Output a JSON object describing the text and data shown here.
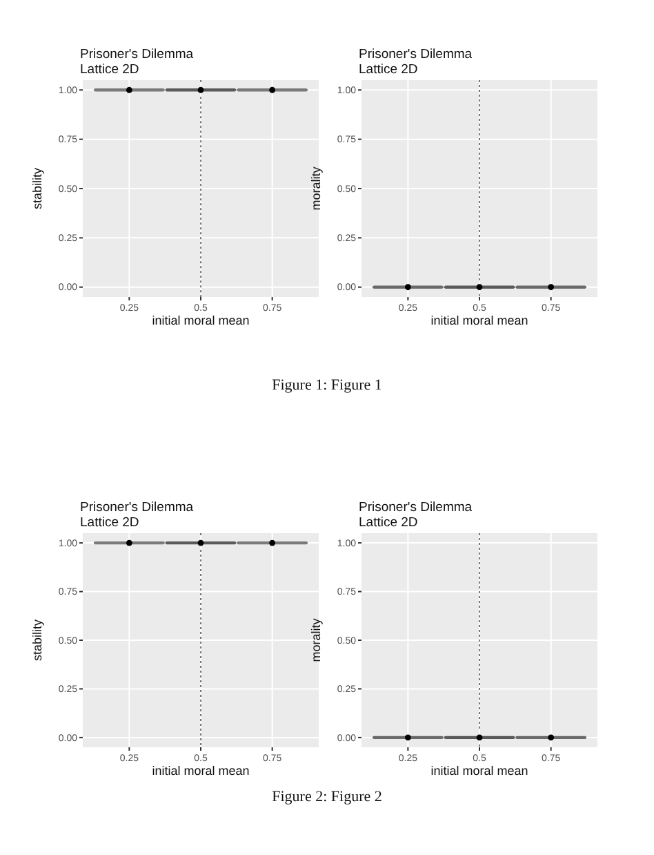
{
  "chart_data": [
    {
      "type": "box",
      "title": "Prisoner's Dilemma",
      "subtitle": "Lattice 2D",
      "xlabel": "initial moral mean",
      "ylabel": "stability",
      "x": [
        0.25,
        0.5,
        0.75
      ],
      "colors": [
        "#7a7a7a",
        "#5a5a5a",
        "#7a7a7a"
      ],
      "boxes": [
        {
          "low": 1,
          "q1": 1,
          "median": 1,
          "q3": 1,
          "high": 1,
          "mean": 1
        },
        {
          "low": 1,
          "q1": 1,
          "median": 1,
          "q3": 1,
          "high": 1,
          "mean": 1
        },
        {
          "low": 1,
          "q1": 1,
          "median": 1,
          "q3": 1,
          "high": 1,
          "mean": 1
        }
      ],
      "xlim": [
        0.0875,
        0.9125
      ],
      "xticks": [
        0.25,
        0.5,
        0.75
      ],
      "ylim": [
        -0.05,
        1.05
      ],
      "yticks": [
        {
          "value": 0,
          "label": "0.00"
        },
        {
          "value": 0.25,
          "label": "0.25"
        },
        {
          "value": 0.5,
          "label": "0.50"
        },
        {
          "value": 0.75,
          "label": "0.75"
        },
        {
          "value": 1,
          "label": "1.00"
        }
      ],
      "grid": true,
      "ref_lines": [
        {
          "axis": "x",
          "value": 0.5,
          "color": "#555555",
          "line_style": "dotted"
        }
      ]
    },
    {
      "type": "box",
      "title": "Prisoner's Dilemma",
      "subtitle": "Lattice 2D",
      "xlabel": "initial moral mean",
      "ylabel": "morality",
      "x": [
        0.25,
        0.5,
        0.75
      ],
      "colors": [
        "#6a6a6a",
        "#5a5a5a",
        "#6a6a6a"
      ],
      "boxes": [
        {
          "low": 0,
          "q1": 0,
          "median": 0,
          "q3": 0,
          "high": 0,
          "mean": 0
        },
        {
          "low": 0,
          "q1": 0,
          "median": 0,
          "q3": 0,
          "high": 0,
          "mean": 0
        },
        {
          "low": 0,
          "q1": 0,
          "median": 0,
          "q3": 0,
          "high": 0,
          "mean": 0
        }
      ],
      "xlim": [
        0.0875,
        0.9125
      ],
      "xticks": [
        0.25,
        0.5,
        0.75
      ],
      "ylim": [
        -0.05,
        1.05
      ],
      "yticks": [
        {
          "value": 0,
          "label": "0.00"
        },
        {
          "value": 0.25,
          "label": "0.25"
        },
        {
          "value": 0.5,
          "label": "0.50"
        },
        {
          "value": 0.75,
          "label": "0.75"
        },
        {
          "value": 1,
          "label": "1.00"
        }
      ],
      "grid": true,
      "ref_lines": [
        {
          "axis": "x",
          "value": 0.5,
          "color": "#555555",
          "line_style": "dotted"
        }
      ],
      "annotations": [
        "Figure 1: Figure 1"
      ]
    },
    {
      "type": "box",
      "title": "Prisoner's Dilemma",
      "subtitle": "Lattice 2D",
      "xlabel": "initial moral mean",
      "ylabel": "stability",
      "x": [
        0.25,
        0.5,
        0.75
      ],
      "colors": [
        "#7a7a7a",
        "#5a5a5a",
        "#7a7a7a"
      ],
      "boxes": [
        {
          "low": 1,
          "q1": 1,
          "median": 1,
          "q3": 1,
          "high": 1,
          "mean": 1
        },
        {
          "low": 1,
          "q1": 1,
          "median": 1,
          "q3": 1,
          "high": 1,
          "mean": 1
        },
        {
          "low": 1,
          "q1": 1,
          "median": 1,
          "q3": 1,
          "high": 1,
          "mean": 1
        }
      ],
      "xlim": [
        0.0875,
        0.9125
      ],
      "xticks": [
        0.25,
        0.5,
        0.75
      ],
      "ylim": [
        -0.05,
        1.05
      ],
      "yticks": [
        {
          "value": 0,
          "label": "0.00"
        },
        {
          "value": 0.25,
          "label": "0.25"
        },
        {
          "value": 0.5,
          "label": "0.50"
        },
        {
          "value": 0.75,
          "label": "0.75"
        },
        {
          "value": 1,
          "label": "1.00"
        }
      ],
      "grid": true,
      "ref_lines": [
        {
          "axis": "x",
          "value": 0.5,
          "color": "#555555",
          "line_style": "dotted"
        }
      ]
    },
    {
      "type": "box",
      "title": "Prisoner's Dilemma",
      "subtitle": "Lattice 2D",
      "xlabel": "initial moral mean",
      "ylabel": "morality",
      "x": [
        0.25,
        0.5,
        0.75
      ],
      "colors": [
        "#6a6a6a",
        "#5a5a5a",
        "#6a6a6a"
      ],
      "boxes": [
        {
          "low": 0,
          "q1": 0,
          "median": 0,
          "q3": 0,
          "high": 0,
          "mean": 0
        },
        {
          "low": 0,
          "q1": 0,
          "median": 0,
          "q3": 0,
          "high": 0,
          "mean": 0
        },
        {
          "low": 0,
          "q1": 0,
          "median": 0,
          "q3": 0,
          "high": 0,
          "mean": 0
        }
      ],
      "xlim": [
        0.0875,
        0.9125
      ],
      "xticks": [
        0.25,
        0.5,
        0.75
      ],
      "ylim": [
        -0.05,
        1.05
      ],
      "yticks": [
        {
          "value": 0,
          "label": "0.00"
        },
        {
          "value": 0.25,
          "label": "0.25"
        },
        {
          "value": 0.5,
          "label": "0.50"
        },
        {
          "value": 0.75,
          "label": "0.75"
        },
        {
          "value": 1,
          "label": "1.00"
        }
      ],
      "grid": true,
      "ref_lines": [
        {
          "axis": "x",
          "value": 0.5,
          "color": "#555555",
          "line_style": "dotted"
        }
      ],
      "annotations": [
        "Figure 2: Figure 2"
      ]
    }
  ]
}
